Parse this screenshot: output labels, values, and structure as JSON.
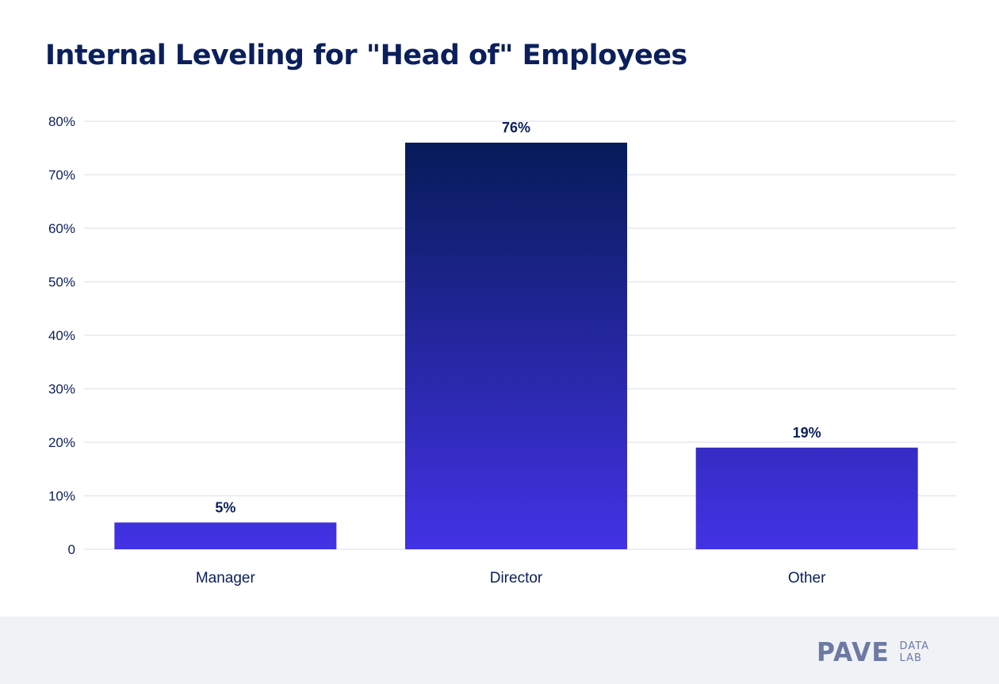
{
  "chart_data": {
    "type": "bar",
    "title": "Internal Leveling for \"Head of\" Employees",
    "categories": [
      "Manager",
      "Director",
      "Other"
    ],
    "values": [
      5,
      76,
      19
    ],
    "value_labels": [
      "5%",
      "76%",
      "19%"
    ],
    "ylim": [
      0,
      80
    ],
    "yticks": [
      0,
      10,
      20,
      30,
      40,
      50,
      60,
      70,
      80
    ],
    "ytick_labels": [
      "0",
      "10%",
      "20%",
      "30%",
      "40%",
      "50%",
      "60%",
      "70%",
      "80%"
    ],
    "xlabel": "",
    "ylabel": "",
    "grid": true,
    "legend": "none",
    "colors": {
      "bar_top": "#031a52",
      "bar_bottom": "#4332e6",
      "grid": "#e6e8ee",
      "text": "#0b1f5c"
    }
  },
  "footer": {
    "logo_word": "PAVE",
    "logo_sub_1": "DATA",
    "logo_sub_2": "LAB"
  }
}
